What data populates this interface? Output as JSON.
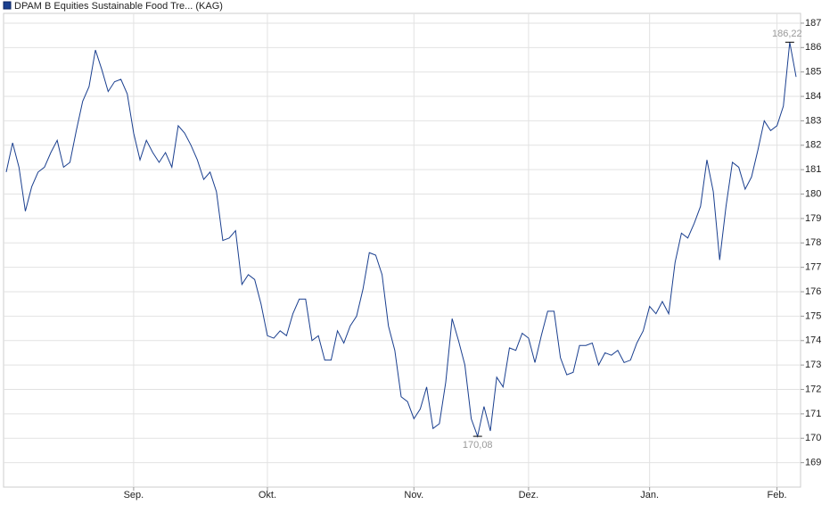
{
  "chart_data": {
    "type": "line",
    "series": [
      {
        "name": "DPAM B Equities Sustainable Food Tre... (KAG)",
        "color": "#1a3f8f",
        "values": [
          180.9,
          182.1,
          181.1,
          179.3,
          180.3,
          180.9,
          181.1,
          181.7,
          182.2,
          181.1,
          181.3,
          182.6,
          183.8,
          184.4,
          185.9,
          185.1,
          184.2,
          184.6,
          184.7,
          184.1,
          182.5,
          181.4,
          182.2,
          181.7,
          181.3,
          181.7,
          181.1,
          182.8,
          182.5,
          182.0,
          181.4,
          180.6,
          180.9,
          180.1,
          178.1,
          178.2,
          178.5,
          176.3,
          176.7,
          176.5,
          175.5,
          174.2,
          174.1,
          174.4,
          174.2,
          175.1,
          175.7,
          175.7,
          174.0,
          174.2,
          173.2,
          173.2,
          174.4,
          173.9,
          174.6,
          175.0,
          176.1,
          177.6,
          177.5,
          176.7,
          174.6,
          173.6,
          171.7,
          171.5,
          170.8,
          171.2,
          172.1,
          170.4,
          170.6,
          172.3,
          174.9,
          174.0,
          173.0,
          170.8,
          170.08,
          171.3,
          170.3,
          172.5,
          172.1,
          173.7,
          173.6,
          174.3,
          174.1,
          173.1,
          174.2,
          175.2,
          175.2,
          173.3,
          172.6,
          172.7,
          173.8,
          173.8,
          173.9,
          173.0,
          173.5,
          173.4,
          173.6,
          173.1,
          173.2,
          173.9,
          174.4,
          175.4,
          175.1,
          175.6,
          175.1,
          177.2,
          178.4,
          178.2,
          178.8,
          179.5,
          181.4,
          180.1,
          177.3,
          179.5,
          181.3,
          181.1,
          180.2,
          180.7,
          181.8,
          183.0,
          182.6,
          182.8,
          183.6,
          186.22,
          184.8
        ]
      }
    ],
    "categories": [
      null,
      null,
      null,
      null,
      null,
      null,
      null,
      null,
      null,
      null,
      null,
      null,
      null,
      null,
      null,
      null,
      null,
      null,
      null,
      null,
      "Sep.",
      null,
      null,
      null,
      null,
      null,
      null,
      null,
      null,
      null,
      null,
      null,
      null,
      null,
      null,
      null,
      null,
      null,
      null,
      null,
      null,
      "Okt.",
      null,
      null,
      null,
      null,
      null,
      null,
      null,
      null,
      null,
      null,
      null,
      null,
      null,
      null,
      null,
      null,
      null,
      null,
      null,
      null,
      null,
      null,
      "Nov.",
      null,
      null,
      null,
      null,
      null,
      null,
      null,
      null,
      null,
      null,
      null,
      null,
      null,
      null,
      null,
      null,
      null,
      "Dez.",
      null,
      null,
      null,
      null,
      null,
      null,
      null,
      null,
      null,
      null,
      null,
      null,
      null,
      null,
      null,
      null,
      null,
      null,
      "Jan.",
      null,
      null,
      null,
      null,
      null,
      null,
      null,
      null,
      null,
      null,
      null,
      null,
      null,
      null,
      null,
      null,
      null,
      null,
      null,
      "Feb.",
      null,
      null,
      null
    ],
    "max_label": "186,22",
    "min_label": "170,08",
    "ylim": [
      168,
      187.4
    ],
    "yticks": [
      169,
      170,
      171,
      172,
      173,
      174,
      175,
      176,
      177,
      178,
      179,
      180,
      181,
      182,
      183,
      184,
      185,
      186,
      187
    ],
    "grid": true
  }
}
